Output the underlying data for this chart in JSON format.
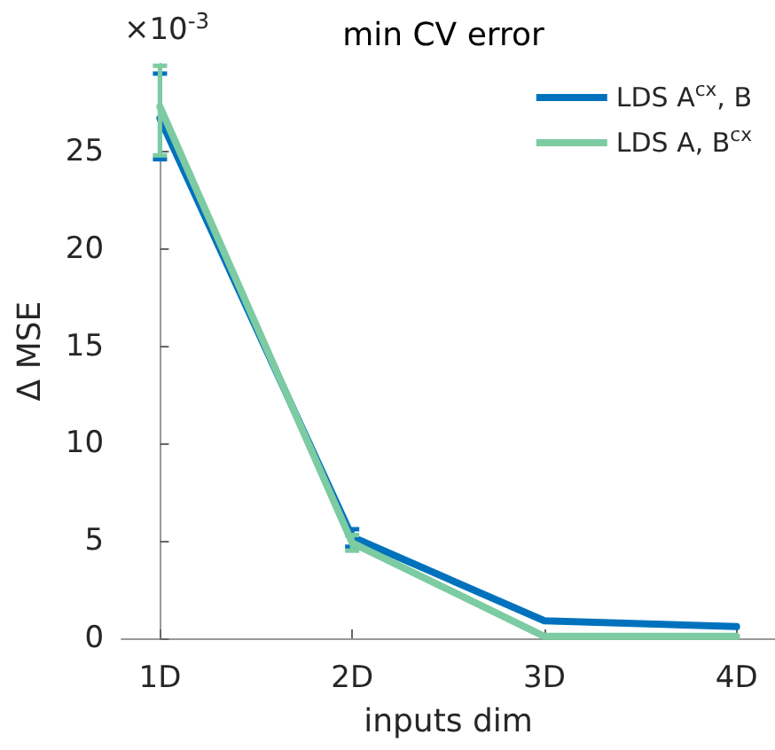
{
  "chart_data": {
    "type": "line",
    "title": "min CV error",
    "xlabel": "inputs dim",
    "ylabel": "Δ MSE",
    "annotations": [
      "×10$^{-3}$"
    ],
    "categories": [
      "1D",
      "2D",
      "3D",
      "4D"
    ],
    "series": [
      {
        "name": "LDS A$^{cx}$, B",
        "color": "#0072bd",
        "values": [
          26.7,
          5.2,
          0.9,
          0.6
        ],
        "errors": [
          [
            24.6,
            29.0
          ],
          [
            4.7,
            5.6
          ],
          null,
          null
        ]
      },
      {
        "name": "LDS A, B$^{cx}$",
        "color": "#7ccba2",
        "values": [
          27.3,
          4.9,
          0.1,
          0.1
        ],
        "errors": [
          [
            24.8,
            29.4
          ],
          [
            4.5,
            5.3
          ],
          null,
          null
        ]
      }
    ],
    "ylim": [
      0,
      29.5
    ],
    "yticks": [
      0,
      5,
      10,
      15,
      20,
      25
    ],
    "legend": "top right",
    "grid": false,
    "marker": "none",
    "line_style": "solid"
  }
}
